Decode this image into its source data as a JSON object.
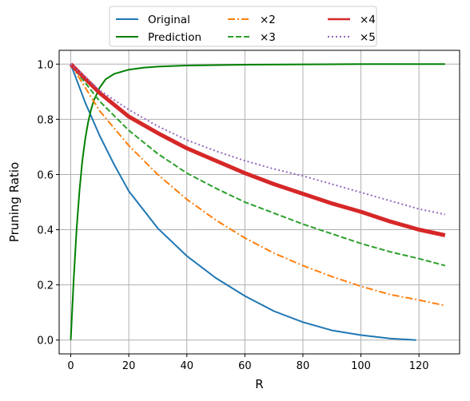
{
  "chart_data": {
    "type": "line",
    "xlabel": "R",
    "ylabel": "Pruning Ratio",
    "xlim": [
      -4,
      134
    ],
    "ylim": [
      -0.05,
      1.05
    ],
    "xticks": [
      0,
      20,
      40,
      60,
      80,
      100,
      120
    ],
    "yticks": [
      0.0,
      0.2,
      0.4,
      0.6,
      0.8,
      1.0
    ],
    "grid": true,
    "legend_position": "top-center, outside plot",
    "legend_columns": 3,
    "series": [
      {
        "name": "Original",
        "color": "#1f77b4",
        "style": "solid",
        "linewidth": 2,
        "x": [
          0,
          5,
          10,
          15,
          20,
          30,
          40,
          50,
          60,
          70,
          80,
          90,
          100,
          110,
          119
        ],
        "y": [
          1.0,
          0.86,
          0.74,
          0.635,
          0.54,
          0.405,
          0.305,
          0.225,
          0.16,
          0.105,
          0.065,
          0.035,
          0.018,
          0.006,
          0.0
        ]
      },
      {
        "name": "Prediction",
        "color": "#008000",
        "style": "solid",
        "linewidth": 2,
        "x": [
          0,
          1,
          2,
          3,
          4,
          5,
          6,
          7,
          8,
          10,
          12,
          15,
          20,
          25,
          30,
          40,
          60,
          80,
          100,
          129
        ],
        "y": [
          0.0,
          0.22,
          0.4,
          0.54,
          0.65,
          0.73,
          0.79,
          0.835,
          0.87,
          0.915,
          0.945,
          0.965,
          0.98,
          0.987,
          0.991,
          0.995,
          0.998,
          0.999,
          1.0,
          1.0
        ]
      },
      {
        "name": "×2",
        "color": "#ff7f0e",
        "style": "dashdot",
        "linewidth": 2,
        "x": [
          0,
          10,
          20,
          30,
          40,
          50,
          60,
          70,
          80,
          90,
          100,
          110,
          120,
          129
        ],
        "y": [
          1.0,
          0.83,
          0.705,
          0.6,
          0.51,
          0.435,
          0.37,
          0.315,
          0.27,
          0.23,
          0.195,
          0.165,
          0.145,
          0.125
        ]
      },
      {
        "name": "×3",
        "color": "#2ca02c",
        "style": "dashed",
        "linewidth": 2,
        "x": [
          0,
          10,
          20,
          30,
          40,
          50,
          60,
          70,
          80,
          90,
          100,
          110,
          120,
          129
        ],
        "y": [
          1.0,
          0.865,
          0.76,
          0.675,
          0.605,
          0.55,
          0.5,
          0.46,
          0.42,
          0.385,
          0.35,
          0.32,
          0.295,
          0.27
        ]
      },
      {
        "name": "×4",
        "color": "#d62728",
        "style": "solid",
        "linewidth": 5,
        "x": [
          0,
          10,
          20,
          30,
          40,
          50,
          60,
          70,
          80,
          90,
          100,
          110,
          120,
          129
        ],
        "y": [
          1.0,
          0.895,
          0.81,
          0.75,
          0.695,
          0.65,
          0.605,
          0.565,
          0.53,
          0.495,
          0.465,
          0.43,
          0.4,
          0.38
        ]
      },
      {
        "name": "×5",
        "color": "#9467bd",
        "style": "dotted",
        "linewidth": 2,
        "x": [
          0,
          10,
          20,
          30,
          40,
          50,
          60,
          70,
          80,
          90,
          100,
          110,
          120,
          129
        ],
        "y": [
          1.0,
          0.905,
          0.835,
          0.775,
          0.725,
          0.685,
          0.65,
          0.62,
          0.595,
          0.565,
          0.535,
          0.505,
          0.475,
          0.455
        ]
      }
    ]
  }
}
